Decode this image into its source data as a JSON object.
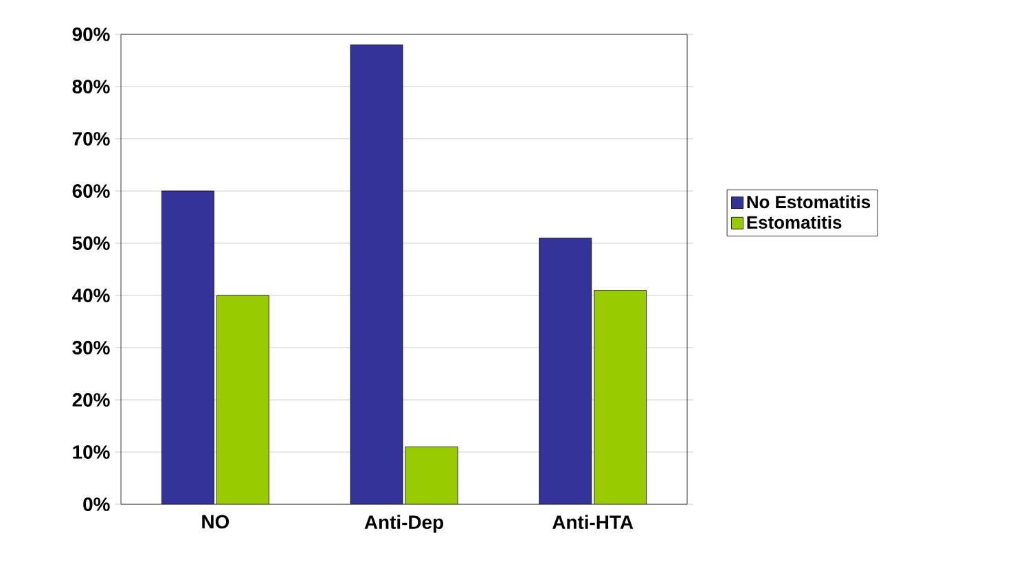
{
  "chart_data": {
    "type": "bar",
    "categories": [
      "NO",
      "Anti-Dep",
      "Anti-HTA"
    ],
    "series": [
      {
        "name": "No Estomatitis",
        "color": "#333399",
        "values": [
          60,
          88,
          51
        ]
      },
      {
        "name": "Estomatitis",
        "color": "#99cc00",
        "values": [
          40,
          11,
          41
        ]
      }
    ],
    "ylim": [
      0,
      90
    ],
    "yticks": [
      {
        "value": 0,
        "label": "0%"
      },
      {
        "value": 10,
        "label": "10%"
      },
      {
        "value": 20,
        "label": "20%"
      },
      {
        "value": 30,
        "label": "30%"
      },
      {
        "value": 40,
        "label": "40%"
      },
      {
        "value": 50,
        "label": "50%"
      },
      {
        "value": 60,
        "label": "60%"
      },
      {
        "value": 70,
        "label": "70%"
      },
      {
        "value": 80,
        "label": "80%"
      },
      {
        "value": 90,
        "label": "90%"
      }
    ],
    "grid": "y",
    "legend": "right"
  }
}
